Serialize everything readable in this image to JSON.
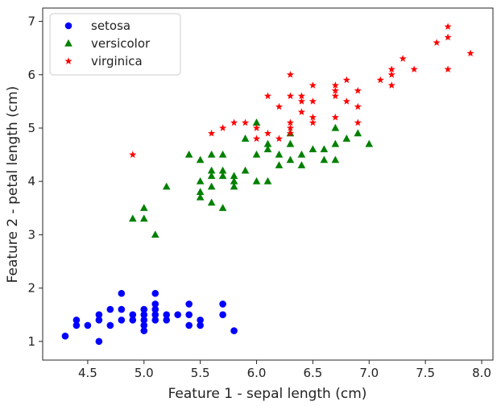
{
  "chart_data": {
    "type": "scatter",
    "title": "",
    "xlabel": "Feature 1 - sepal length (cm)",
    "ylabel": "Feature 2 - petal length (cm)",
    "xlim": [
      4.1,
      8.1
    ],
    "ylim": [
      0.65,
      7.25
    ],
    "xticks": [
      "4.5",
      "5.0",
      "5.5",
      "6.0",
      "6.5",
      "7.0",
      "7.5",
      "8.0"
    ],
    "yticks": [
      "1",
      "2",
      "3",
      "4",
      "5",
      "6",
      "7"
    ],
    "grid": false,
    "legend_position": "top-left",
    "series": [
      {
        "name": "setosa",
        "color": "#0000ff",
        "marker": "circle",
        "points": [
          [
            4.3,
            1.1
          ],
          [
            4.4,
            1.3
          ],
          [
            4.4,
            1.4
          ],
          [
            4.5,
            1.3
          ],
          [
            4.6,
            1.0
          ],
          [
            4.6,
            1.4
          ],
          [
            4.6,
            1.5
          ],
          [
            4.7,
            1.3
          ],
          [
            4.7,
            1.6
          ],
          [
            4.8,
            1.4
          ],
          [
            4.8,
            1.6
          ],
          [
            4.8,
            1.9
          ],
          [
            4.9,
            1.4
          ],
          [
            4.9,
            1.5
          ],
          [
            5.0,
            1.2
          ],
          [
            5.0,
            1.3
          ],
          [
            5.0,
            1.4
          ],
          [
            5.0,
            1.5
          ],
          [
            5.0,
            1.6
          ],
          [
            5.1,
            1.4
          ],
          [
            5.1,
            1.5
          ],
          [
            5.1,
            1.6
          ],
          [
            5.1,
            1.7
          ],
          [
            5.1,
            1.9
          ],
          [
            5.2,
            1.4
          ],
          [
            5.2,
            1.5
          ],
          [
            5.3,
            1.5
          ],
          [
            5.4,
            1.3
          ],
          [
            5.4,
            1.5
          ],
          [
            5.4,
            1.7
          ],
          [
            5.5,
            1.3
          ],
          [
            5.5,
            1.4
          ],
          [
            5.7,
            1.5
          ],
          [
            5.7,
            1.7
          ],
          [
            5.8,
            1.2
          ]
        ]
      },
      {
        "name": "versicolor",
        "color": "#008000",
        "marker": "triangle",
        "points": [
          [
            4.9,
            3.3
          ],
          [
            5.0,
            3.3
          ],
          [
            5.0,
            3.5
          ],
          [
            5.1,
            3.0
          ],
          [
            5.2,
            3.9
          ],
          [
            5.4,
            4.5
          ],
          [
            5.5,
            3.7
          ],
          [
            5.5,
            3.8
          ],
          [
            5.5,
            4.0
          ],
          [
            5.5,
            4.4
          ],
          [
            5.6,
            3.6
          ],
          [
            5.6,
            3.9
          ],
          [
            5.6,
            4.1
          ],
          [
            5.6,
            4.2
          ],
          [
            5.6,
            4.5
          ],
          [
            5.7,
            3.5
          ],
          [
            5.7,
            4.1
          ],
          [
            5.7,
            4.2
          ],
          [
            5.7,
            4.5
          ],
          [
            5.8,
            3.9
          ],
          [
            5.8,
            4.0
          ],
          [
            5.8,
            4.1
          ],
          [
            5.9,
            4.2
          ],
          [
            5.9,
            4.8
          ],
          [
            6.0,
            4.0
          ],
          [
            6.0,
            4.5
          ],
          [
            6.0,
            5.1
          ],
          [
            6.1,
            4.0
          ],
          [
            6.1,
            4.6
          ],
          [
            6.1,
            4.7
          ],
          [
            6.2,
            4.3
          ],
          [
            6.2,
            4.5
          ],
          [
            6.3,
            4.4
          ],
          [
            6.3,
            4.7
          ],
          [
            6.3,
            4.9
          ],
          [
            6.4,
            4.3
          ],
          [
            6.4,
            4.5
          ],
          [
            6.5,
            4.6
          ],
          [
            6.6,
            4.4
          ],
          [
            6.6,
            4.6
          ],
          [
            6.7,
            4.4
          ],
          [
            6.7,
            4.7
          ],
          [
            6.7,
            5.0
          ],
          [
            6.8,
            4.8
          ],
          [
            6.9,
            4.9
          ],
          [
            7.0,
            4.7
          ]
        ]
      },
      {
        "name": "virginica",
        "color": "#ff0000",
        "marker": "star",
        "points": [
          [
            4.9,
            4.5
          ],
          [
            5.6,
            4.9
          ],
          [
            5.7,
            5.0
          ],
          [
            5.8,
            5.1
          ],
          [
            5.9,
            5.1
          ],
          [
            6.0,
            4.8
          ],
          [
            6.0,
            5.0
          ],
          [
            6.1,
            4.9
          ],
          [
            6.1,
            5.6
          ],
          [
            6.2,
            4.8
          ],
          [
            6.2,
            5.4
          ],
          [
            6.3,
            4.9
          ],
          [
            6.3,
            5.0
          ],
          [
            6.3,
            5.1
          ],
          [
            6.3,
            5.6
          ],
          [
            6.3,
            6.0
          ],
          [
            6.4,
            5.3
          ],
          [
            6.4,
            5.5
          ],
          [
            6.4,
            5.6
          ],
          [
            6.5,
            5.1
          ],
          [
            6.5,
            5.2
          ],
          [
            6.5,
            5.5
          ],
          [
            6.5,
            5.8
          ],
          [
            6.7,
            5.2
          ],
          [
            6.7,
            5.6
          ],
          [
            6.7,
            5.7
          ],
          [
            6.7,
            5.8
          ],
          [
            6.8,
            5.5
          ],
          [
            6.8,
            5.9
          ],
          [
            6.9,
            5.1
          ],
          [
            6.9,
            5.4
          ],
          [
            6.9,
            5.7
          ],
          [
            7.1,
            5.9
          ],
          [
            7.2,
            5.8
          ],
          [
            7.2,
            6.0
          ],
          [
            7.2,
            6.1
          ],
          [
            7.3,
            6.3
          ],
          [
            7.4,
            6.1
          ],
          [
            7.6,
            6.6
          ],
          [
            7.7,
            6.1
          ],
          [
            7.7,
            6.7
          ],
          [
            7.7,
            6.9
          ],
          [
            7.9,
            6.4
          ]
        ]
      }
    ]
  }
}
